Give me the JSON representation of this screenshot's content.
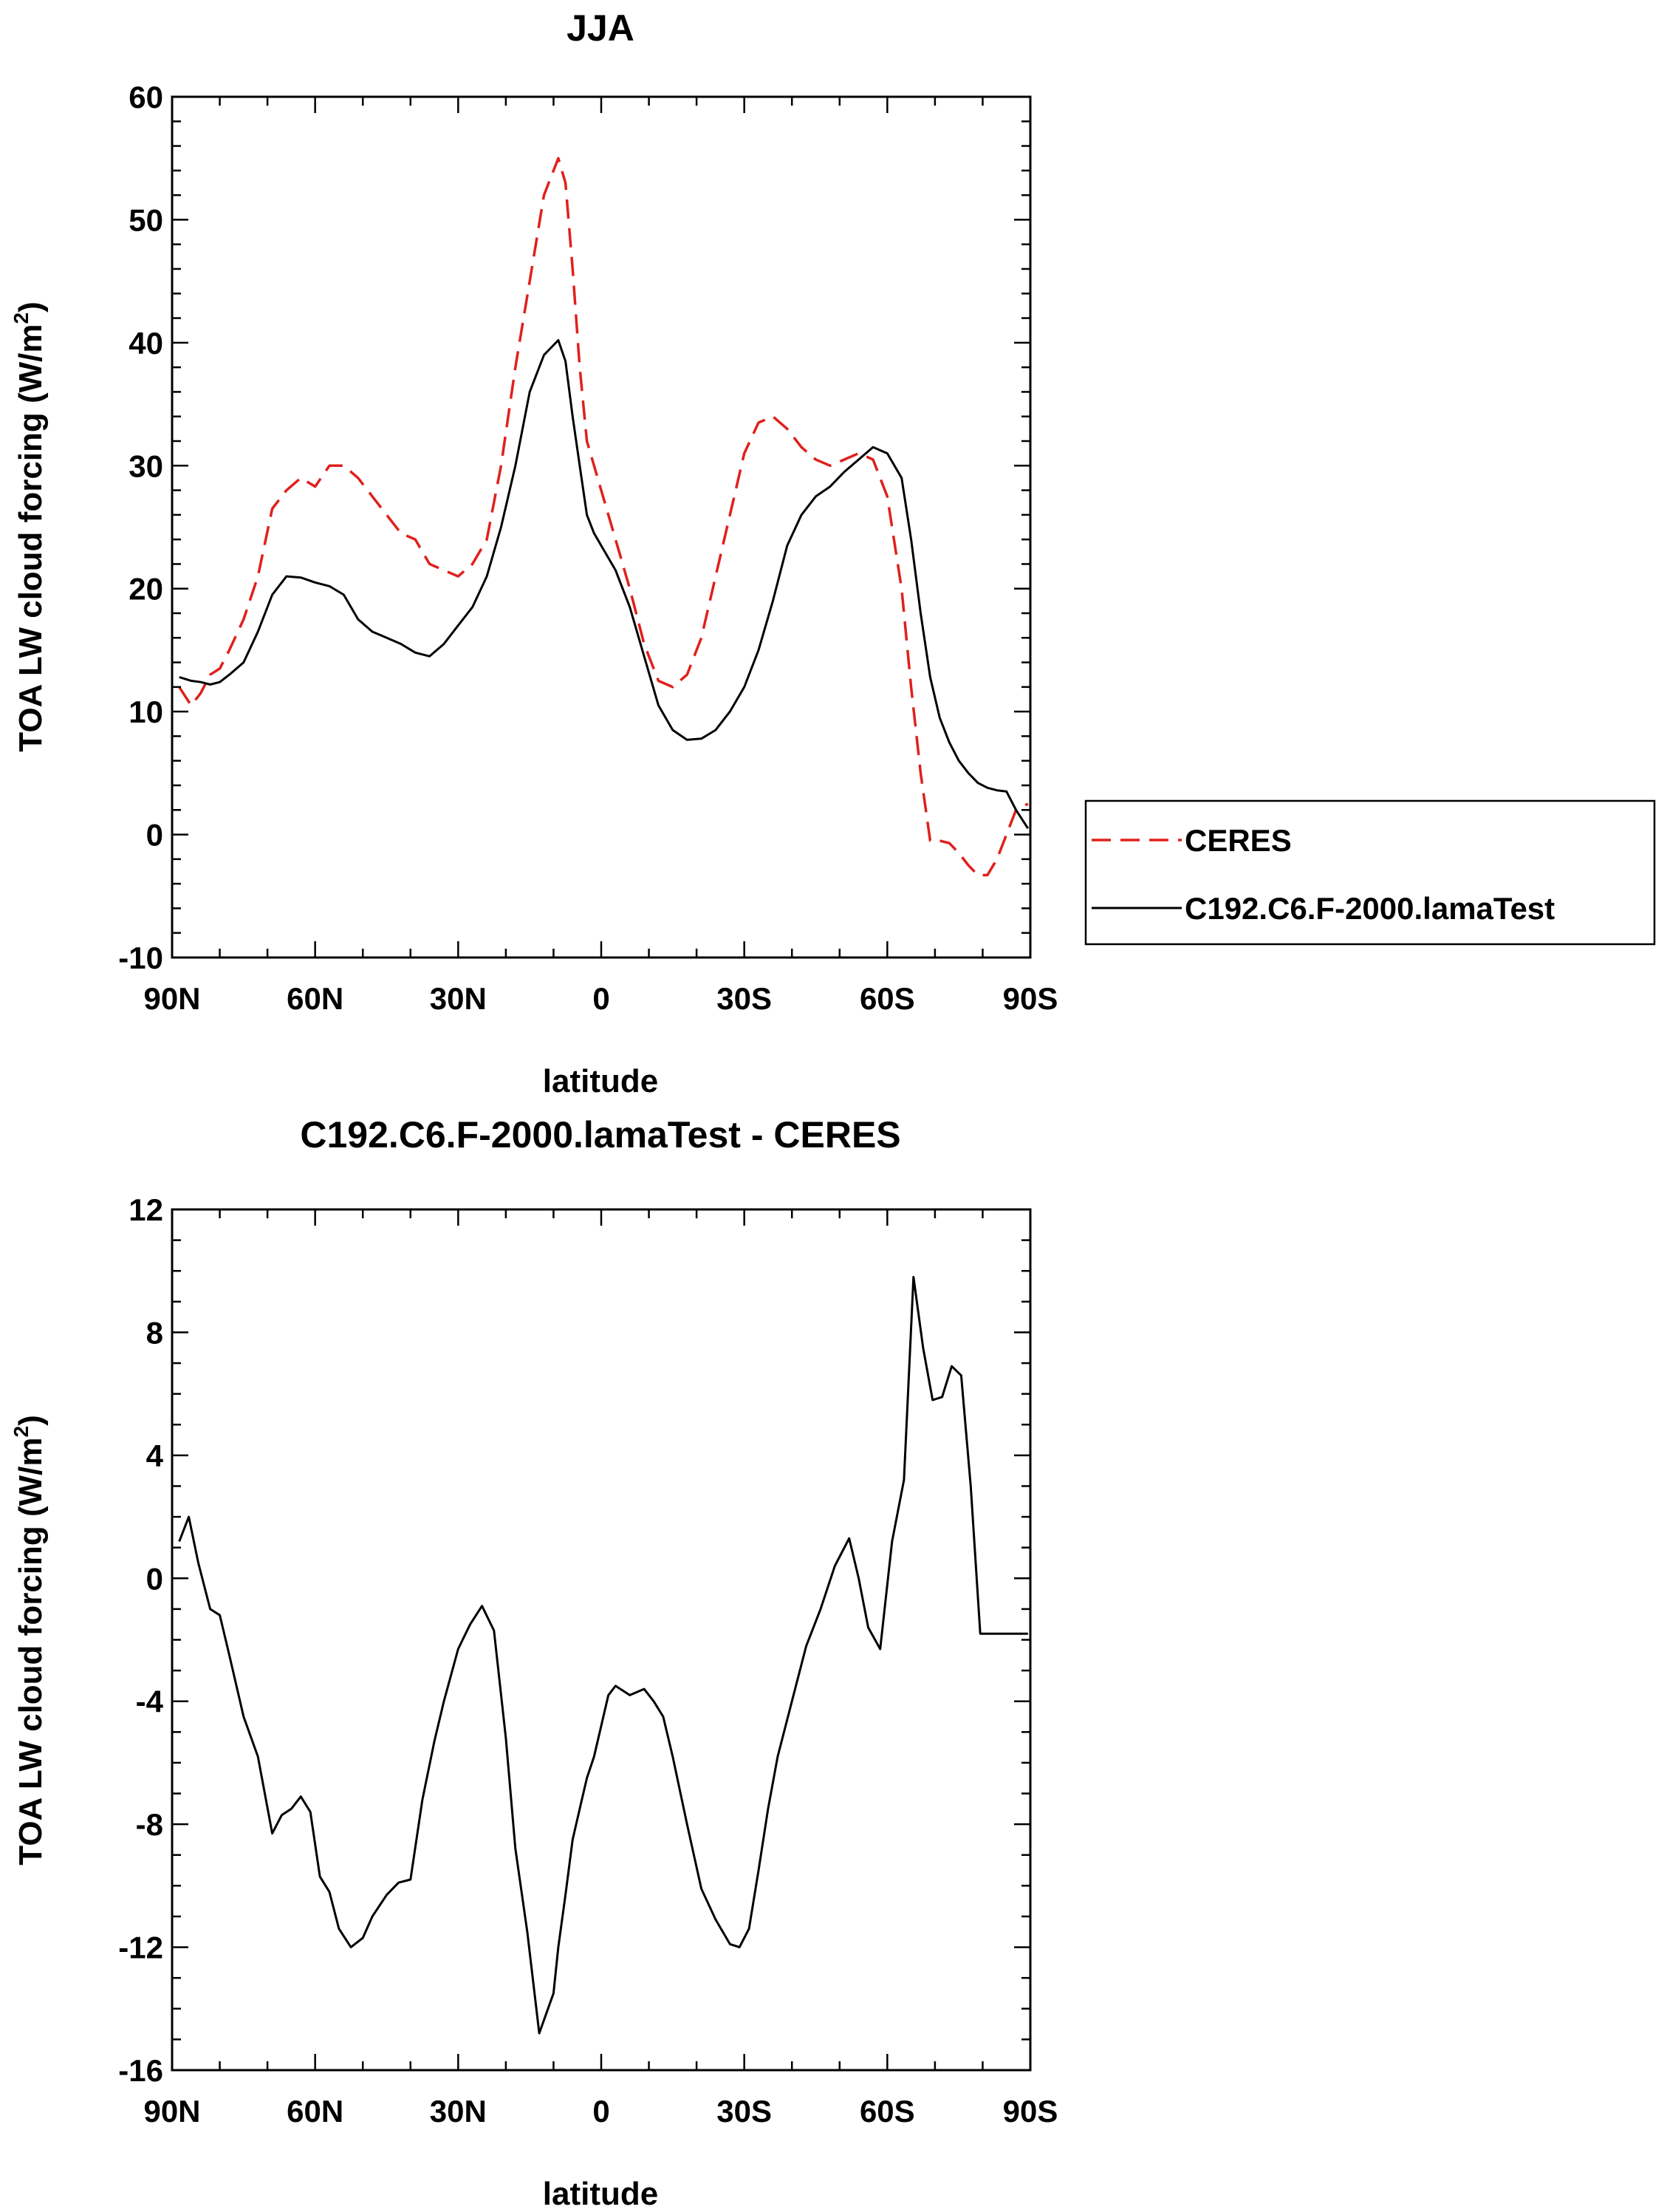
{
  "chart_data": [
    {
      "id": "top",
      "type": "line",
      "title": "JJA",
      "xlabel": "latitude",
      "ylabel_main": "TOA LW cloud forcing (W/m",
      "ylabel_sup": "2",
      "ylabel_end": ")",
      "xlim": [
        90,
        -90
      ],
      "ylim": [
        -10,
        60
      ],
      "x_ticks": [
        90,
        60,
        30,
        0,
        -30,
        -60,
        -90
      ],
      "x_tick_labels": [
        "90N",
        "60N",
        "30N",
        "0",
        "30S",
        "60S",
        "90S"
      ],
      "x_minor_step": 10,
      "y_ticks": [
        -10,
        0,
        10,
        20,
        30,
        40,
        50,
        60
      ],
      "y_tick_labels": [
        "-10",
        "0",
        "10",
        "20",
        "30",
        "40",
        "50",
        "60"
      ],
      "y_minor_step": 2,
      "legend": {
        "placement": "right",
        "entries": [
          "CERES",
          "C192.C6.F-2000.lamaTest"
        ]
      },
      "series": [
        {
          "name": "CERES",
          "color": "#e0201c",
          "style": "dashed",
          "x": [
            88.5,
            86,
            84,
            82,
            80,
            78,
            75,
            72,
            69,
            66,
            63,
            60,
            57,
            54,
            51,
            48,
            45,
            42,
            39,
            36,
            33,
            30,
            27,
            24,
            21,
            18,
            15,
            12,
            9,
            7.5,
            6,
            4.5,
            3,
            1.5,
            0,
            -1.5,
            -3,
            -6,
            -9,
            -12,
            -15,
            -18,
            -21,
            -24,
            -27,
            -30,
            -33,
            -36,
            -39,
            -42,
            -45,
            -48,
            -51,
            -54,
            -57,
            -60,
            -63,
            -65,
            -67,
            -69,
            -71,
            -73,
            -75,
            -77,
            -79,
            -81,
            -83,
            -85,
            -87,
            -89.5
          ],
          "y": [
            12,
            10.5,
            11.5,
            13,
            13.5,
            15,
            17.5,
            21,
            26.5,
            28,
            29,
            28.3,
            30,
            30,
            29,
            27.5,
            26,
            24.5,
            24,
            22,
            21.5,
            21,
            22,
            24,
            30,
            38,
            45,
            52,
            55,
            53,
            46,
            38,
            32,
            30,
            28,
            26,
            24,
            20,
            15.5,
            12.5,
            12,
            13,
            16,
            21,
            26,
            31,
            33.5,
            34,
            33,
            31.5,
            30.5,
            30,
            30.5,
            31,
            30.5,
            27.5,
            20,
            12,
            5,
            -0.5,
            -0.5,
            -0.7,
            -1.5,
            -2.5,
            -3.3,
            -3.3,
            -2,
            0,
            2,
            2.5
          ]
        },
        {
          "name": "C192.C6.F-2000.lamaTest",
          "color": "#000000",
          "style": "solid",
          "x": [
            88.5,
            86,
            84,
            82,
            80,
            78,
            75,
            72,
            69,
            66,
            63,
            60,
            57,
            54,
            51,
            48,
            45,
            42,
            39,
            36,
            33,
            30,
            27,
            24,
            21,
            18,
            15,
            12,
            9,
            7.5,
            6,
            4.5,
            3,
            1.5,
            0,
            -1.5,
            -3,
            -6,
            -9,
            -12,
            -15,
            -18,
            -21,
            -24,
            -27,
            -30,
            -33,
            -36,
            -39,
            -42,
            -45,
            -48,
            -51,
            -54,
            -57,
            -60,
            -63,
            -65,
            -67,
            -69,
            -71,
            -73,
            -75,
            -77,
            -79,
            -81,
            -83,
            -85,
            -87,
            -89.5
          ],
          "y": [
            12.8,
            12.5,
            12.4,
            12.2,
            12.4,
            13,
            14,
            16.5,
            19.5,
            21,
            20.9,
            20.5,
            20.2,
            19.5,
            17.5,
            16.5,
            16,
            15.5,
            14.8,
            14.5,
            15.5,
            17,
            18.5,
            21,
            25,
            30,
            36,
            39,
            40.2,
            38.5,
            34,
            30,
            26,
            24.5,
            23.5,
            22.5,
            21.5,
            18.5,
            14.5,
            10.5,
            8.5,
            7.7,
            7.8,
            8.5,
            10,
            12,
            15,
            19,
            23.5,
            26,
            27.5,
            28.3,
            29.5,
            30.5,
            31.5,
            31,
            29,
            24,
            18,
            12.8,
            9.5,
            7.5,
            6,
            5,
            4.2,
            3.8,
            3.6,
            3.5,
            2,
            0.5
          ]
        }
      ]
    },
    {
      "id": "bottom",
      "type": "line",
      "title": "C192.C6.F-2000.lamaTest - CERES",
      "xlabel": "latitude",
      "ylabel_main": "TOA LW cloud forcing (W/m",
      "ylabel_sup": "2",
      "ylabel_end": ")",
      "xlim": [
        90,
        -90
      ],
      "ylim": [
        -16,
        12
      ],
      "x_ticks": [
        90,
        60,
        30,
        0,
        -30,
        -60,
        -90
      ],
      "x_tick_labels": [
        "90N",
        "60N",
        "30N",
        "0",
        "30S",
        "60S",
        "90S"
      ],
      "x_minor_step": 10,
      "y_ticks": [
        -16,
        -12,
        -8,
        -4,
        0,
        4,
        8,
        12
      ],
      "y_tick_labels": [
        "-16",
        "-12",
        "-8",
        "-4",
        "0",
        "4",
        "8",
        "12"
      ],
      "y_minor_step": 1,
      "series": [
        {
          "name": "C192.C6.F-2000.lamaTest - CERES",
          "color": "#000000",
          "style": "solid",
          "x": [
            88.5,
            86.5,
            84.5,
            82,
            80,
            78,
            75,
            72,
            69,
            67,
            65,
            63,
            61,
            59,
            57,
            55,
            52.5,
            50,
            48,
            45,
            42.5,
            40,
            37.5,
            35,
            33,
            30,
            27.5,
            25,
            22.5,
            20,
            18,
            15.5,
            13,
            10,
            9,
            7.5,
            6,
            4.5,
            3,
            1.5,
            0,
            -1.5,
            -3,
            -6,
            -9,
            -11,
            -13,
            -15,
            -18,
            -21,
            -24,
            -27,
            -29,
            -31,
            -33,
            -35,
            -37,
            -40,
            -43,
            -46,
            -49,
            -52,
            -54,
            -56,
            -58.5,
            -61,
            -63.5,
            -65.5,
            -67.5,
            -69.5,
            -71.5,
            -73.5,
            -75.5,
            -77.5,
            -79.5,
            -81.5,
            -83.5,
            -85.5,
            -87.5,
            -89.5
          ],
          "y": [
            1.2,
            2,
            0.5,
            -1,
            -1.2,
            -2.5,
            -4.5,
            -5.8,
            -8.3,
            -7.7,
            -7.5,
            -7.1,
            -7.6,
            -9.7,
            -10.2,
            -11.4,
            -12,
            -11.7,
            -11,
            -10.3,
            -9.9,
            -9.8,
            -7.2,
            -5.3,
            -4,
            -2.3,
            -1.5,
            -0.9,
            -1.7,
            -5.2,
            -8.8,
            -11.5,
            -14.8,
            -13.5,
            -12,
            -10.3,
            -8.5,
            -7.5,
            -6.5,
            -5.8,
            -4.8,
            -3.8,
            -3.5,
            -3.8,
            -3.6,
            -4.0,
            -4.5,
            -5.8,
            -8,
            -10.1,
            -11.1,
            -11.9,
            -12,
            -11.4,
            -9.5,
            -7.5,
            -5.8,
            -4,
            -2.2,
            -1,
            0.4,
            1.3,
            0,
            -1.6,
            -2.3,
            1.2,
            3.2,
            9.8,
            7.5,
            5.8,
            5.9,
            6.9,
            6.6,
            3,
            -1.8,
            -1.8,
            -1.8,
            -1.8,
            -1.8,
            -1.8
          ]
        }
      ]
    }
  ]
}
